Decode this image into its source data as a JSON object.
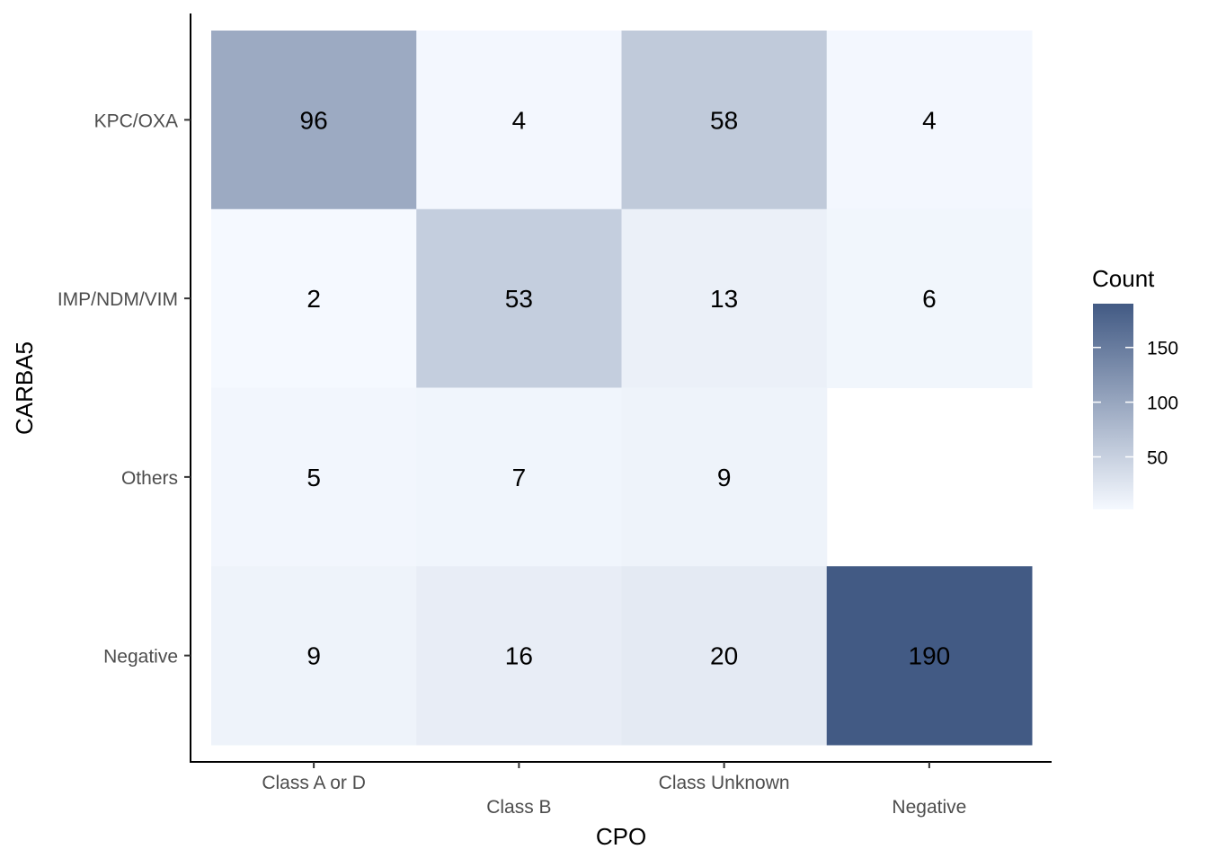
{
  "chart_data": {
    "type": "heatmap",
    "xlabel": "CPO",
    "ylabel": "CARBA5",
    "x_categories": [
      "Class A or D",
      "Class B",
      "Class Unknown",
      "Negative"
    ],
    "y_categories": [
      "KPC/OXA",
      "IMP/NDM/VIM",
      "Others",
      "Negative"
    ],
    "cells": [
      {
        "x": "Class A or D",
        "y": "KPC/OXA",
        "value": 96
      },
      {
        "x": "Class B",
        "y": "KPC/OXA",
        "value": 4
      },
      {
        "x": "Class Unknown",
        "y": "KPC/OXA",
        "value": 58
      },
      {
        "x": "Negative",
        "y": "KPC/OXA",
        "value": 4
      },
      {
        "x": "Class A or D",
        "y": "IMP/NDM/VIM",
        "value": 2
      },
      {
        "x": "Class B",
        "y": "IMP/NDM/VIM",
        "value": 53
      },
      {
        "x": "Class Unknown",
        "y": "IMP/NDM/VIM",
        "value": 13
      },
      {
        "x": "Negative",
        "y": "IMP/NDM/VIM",
        "value": 6
      },
      {
        "x": "Class A or D",
        "y": "Others",
        "value": 5
      },
      {
        "x": "Class B",
        "y": "Others",
        "value": 7
      },
      {
        "x": "Class Unknown",
        "y": "Others",
        "value": 9
      },
      {
        "x": "Class A or D",
        "y": "Negative",
        "value": 9
      },
      {
        "x": "Class B",
        "y": "Negative",
        "value": 16
      },
      {
        "x": "Class Unknown",
        "y": "Negative",
        "value": 20
      },
      {
        "x": "Negative",
        "y": "Negative",
        "value": 190
      }
    ],
    "legend": {
      "title": "Count",
      "ticks": [
        50,
        100,
        150
      ],
      "tick_labels": [
        "50",
        "100",
        "150"
      ],
      "range": [
        2,
        190
      ],
      "position": "right"
    },
    "colors": {
      "low": "#f5f9ff",
      "high": "#425a84"
    },
    "grid": false
  }
}
